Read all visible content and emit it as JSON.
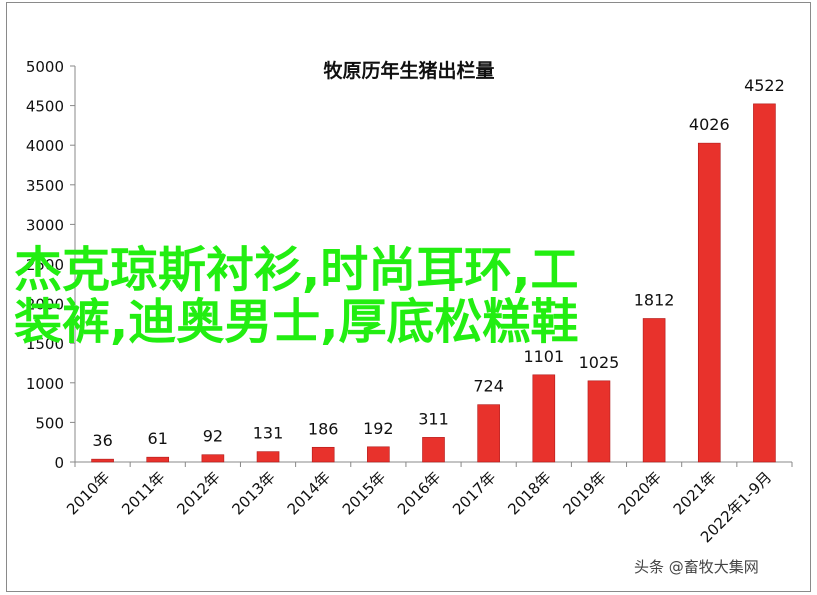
{
  "chart_data": {
    "type": "bar",
    "title": "牧原历年生猪出栏量",
    "xlabel": "",
    "ylabel": "",
    "categories": [
      "2010年",
      "2011年",
      "2012年",
      "2013年",
      "2014年",
      "2015年",
      "2016年",
      "2017年",
      "2018年",
      "2019年",
      "2020年",
      "2021年",
      "2022年1-9月"
    ],
    "values": [
      36,
      61,
      92,
      131,
      186,
      192,
      311,
      724,
      1101,
      1025,
      1812,
      4026,
      4522
    ],
    "data_labels": [
      "36",
      "61",
      "92",
      "131",
      "186",
      "192",
      "311",
      "724",
      "1101",
      "1025",
      "1812",
      "4026",
      "4522"
    ],
    "ylim": [
      0,
      5000
    ],
    "yticks": [
      0,
      500,
      1000,
      1500,
      2000,
      2500,
      3000,
      3500,
      4000,
      4500,
      5000
    ],
    "grid": false,
    "legend": "none",
    "bar_color": "#e8322c",
    "bar_edge_color": "#b01818"
  },
  "overlay_text": {
    "line1": "杰克琼斯衬衫,时尚耳环,工",
    "line2": "装裤,迪奥男士,厚底松糕鞋",
    "color": "#22ee11"
  },
  "watermark": "头条 @畜牧大集网"
}
